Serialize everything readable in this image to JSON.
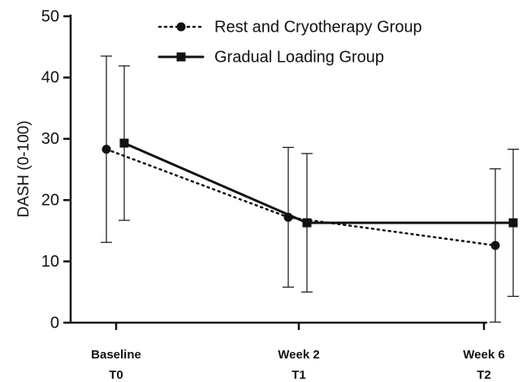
{
  "chart_data": {
    "type": "line",
    "ylabel": "DASH (0-100)",
    "categories": [
      "Baseline\nT0",
      "Week 2\nT1",
      "Week 6\nT2"
    ],
    "series": [
      {
        "name": "Rest and Cryotherapy Group",
        "color": "#111111",
        "style": "dotted",
        "marker": "circle",
        "values": [
          28.3,
          17.2,
          12.6
        ],
        "errors": [
          15.2,
          11.4,
          12.5
        ]
      },
      {
        "name": "Gradual Loading Group",
        "color": "#111111",
        "style": "solid",
        "marker": "square",
        "values": [
          29.3,
          16.3,
          16.3
        ],
        "errors": [
          12.6,
          11.3,
          12.0
        ]
      }
    ],
    "ylim": [
      0,
      50
    ],
    "yticks": [
      0,
      10,
      20,
      30,
      40,
      50
    ],
    "grid": false,
    "legend": "top"
  }
}
